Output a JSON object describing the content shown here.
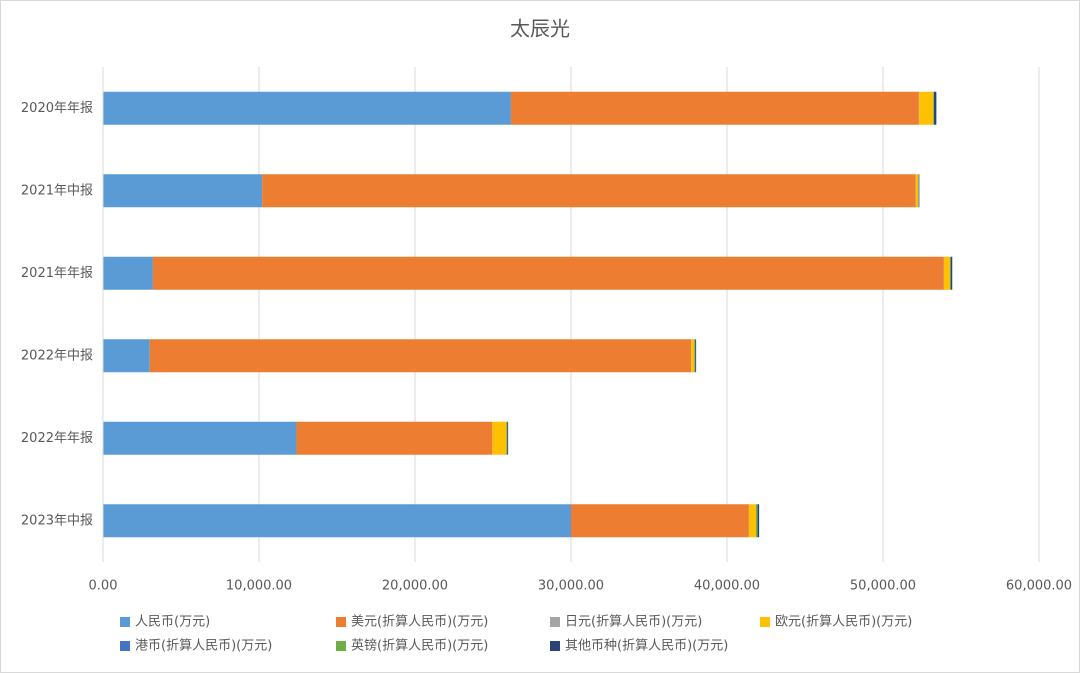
{
  "chart_data": {
    "type": "stacked-bar-horizontal",
    "title": "太辰光",
    "categories": [
      "2020年年报",
      "2021年中报",
      "2021年年报",
      "2022年中报",
      "2022年年报",
      "2023年中报"
    ],
    "series": [
      {
        "name": "人民币(万元)",
        "color": "#5b9bd5",
        "values": [
          26150,
          10200,
          3200,
          3000,
          12400,
          30000
        ]
      },
      {
        "name": "美元(折算人民币)(万元)",
        "color": "#ed7d31",
        "values": [
          26150,
          41900,
          50700,
          34700,
          12550,
          11400
        ]
      },
      {
        "name": "日元(折算人民币)(万元)",
        "color": "#a5a5a5",
        "values": [
          20,
          10,
          10,
          10,
          10,
          10
        ]
      },
      {
        "name": "欧元(折算人民币)(万元)",
        "color": "#ffc000",
        "values": [
          900,
          150,
          380,
          190,
          900,
          450
        ]
      },
      {
        "name": "港币(折算人民币)(万元)",
        "color": "#4472c4",
        "values": [
          0,
          0,
          0,
          0,
          0,
          0
        ]
      },
      {
        "name": "英镑(折算人民币)(万元)",
        "color": "#70ad47",
        "values": [
          50,
          30,
          50,
          60,
          50,
          100
        ]
      },
      {
        "name": "其他币种(折算人民币)(万元)",
        "color": "#264478",
        "values": [
          150,
          40,
          100,
          60,
          60,
          100
        ]
      }
    ],
    "xlim": [
      0,
      60000
    ],
    "xticks": [
      {
        "value": 0,
        "label": "0.00"
      },
      {
        "value": 10000,
        "label": "10,000.00"
      },
      {
        "value": 20000,
        "label": "20,000.00"
      },
      {
        "value": 30000,
        "label": "30,000.00"
      },
      {
        "value": 40000,
        "label": "40,000.00"
      },
      {
        "value": 50000,
        "label": "50,000.00"
      },
      {
        "value": 60000,
        "label": "60,000.00"
      }
    ],
    "grid": true
  }
}
